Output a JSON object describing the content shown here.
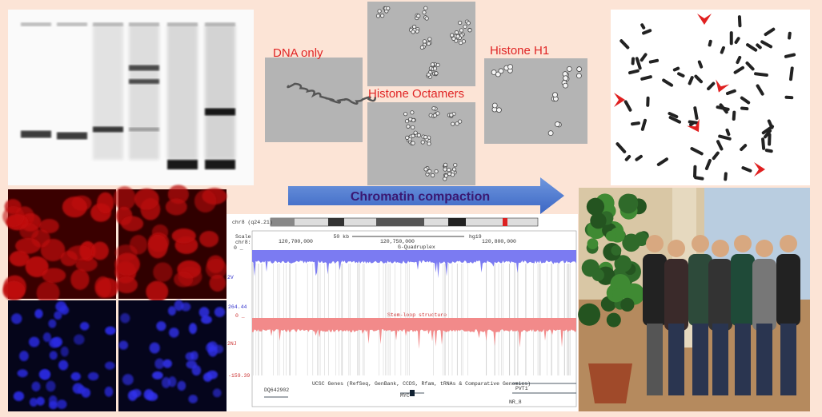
{
  "labels": {
    "dna_only": "DNA only",
    "histone_octamers": "Histone Octamers",
    "histone_h1": "Histone H1",
    "arrow": "Chromatin compaction"
  },
  "browser": {
    "position": "chr8 (q24.21)",
    "scale_label": "Scale",
    "chrom_label": "chr8:",
    "scale": "50 kb",
    "assembly": "hg19",
    "coords": [
      "120,700,000",
      "120,750,000",
      "120,800,000"
    ],
    "track1": "G-Quadruplex",
    "track2": "Stem-loop structure",
    "genes": "UCSC Genes (RefSeq, GenBank, CCDS, Rfam, tRNAs & Comparative Genomics)",
    "track1_top": "0 _",
    "track1_name": "2V",
    "track2_max": "264.44",
    "track2_top": "0 _",
    "track2_name": "2NJ",
    "track2_min": "-159.39",
    "gene_names": [
      "DQ642902",
      "MYC",
      "PVT1",
      "NR_8"
    ]
  }
}
